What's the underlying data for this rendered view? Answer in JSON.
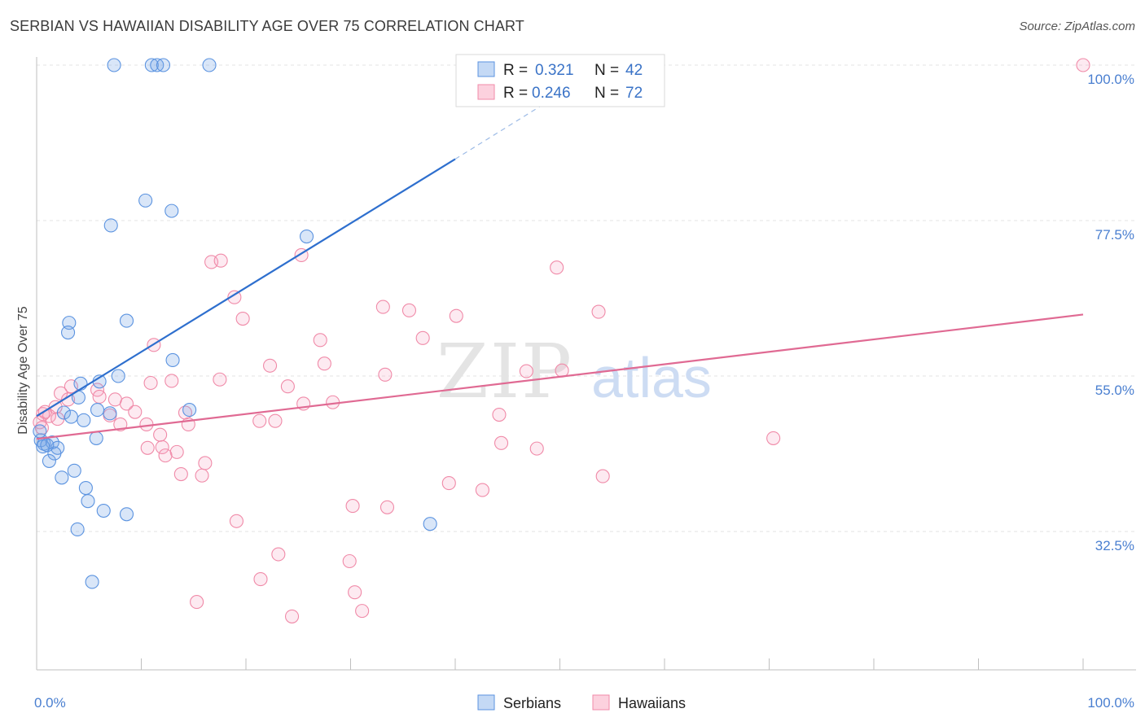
{
  "title": "SERBIAN VS HAWAIIAN DISABILITY AGE OVER 75 CORRELATION CHART",
  "source": "Source: ZipAtlas.com",
  "watermark": {
    "zip": "ZIP",
    "atlas": "atlas"
  },
  "legend": {
    "r_label": "R =",
    "n_label": "N =",
    "rows": [
      {
        "series": "Serbians",
        "r": "0.321",
        "n": "42"
      },
      {
        "series": "Hawaiians",
        "r": "0.246",
        "n": "72"
      }
    ]
  },
  "bottom_legend": [
    "Serbians",
    "Hawaiians"
  ],
  "chart_data": {
    "type": "scatter",
    "title": "SERBIAN VS HAWAIIAN DISABILITY AGE OVER 75 CORRELATION CHART",
    "xlabel": "",
    "ylabel": "Disability Age Over 75",
    "xlim": [
      0,
      100
    ],
    "ylim": [
      10,
      102
    ],
    "x_tick_labels": [
      "0.0%",
      "100.0%"
    ],
    "y_ticks": [
      32.5,
      55.0,
      77.5,
      100.0
    ],
    "y_tick_labels": [
      "32.5%",
      "55.0%",
      "77.5%",
      "100.0%"
    ],
    "grid": true,
    "legend_position": "top-center",
    "colors": {
      "Serbians": "#5b93e0",
      "Hawaiians": "#f08aa8",
      "serbian_line": "#2e6fce",
      "hawaiian_line": "#e06a93"
    },
    "series": [
      {
        "name": "Serbians",
        "r": 0.321,
        "n": 42,
        "trend": {
          "x": [
            0,
            40
          ],
          "y": [
            49.2,
            86.4
          ],
          "dashed_to": [
            55,
            100.5
          ]
        },
        "points": [
          [
            7.4,
            100
          ],
          [
            11,
            100
          ],
          [
            11.5,
            100
          ],
          [
            12.1,
            100
          ],
          [
            16.5,
            100
          ],
          [
            10.4,
            80.4
          ],
          [
            12.9,
            78.9
          ],
          [
            7.1,
            76.8
          ],
          [
            25.8,
            75.2
          ],
          [
            3.1,
            62.7
          ],
          [
            3.0,
            61.3
          ],
          [
            8.6,
            63.0
          ],
          [
            13.0,
            57.3
          ],
          [
            7.8,
            55.0
          ],
          [
            6.0,
            54.2
          ],
          [
            4.2,
            53.9
          ],
          [
            4.0,
            51.9
          ],
          [
            2.6,
            49.7
          ],
          [
            5.8,
            50.1
          ],
          [
            7.0,
            49.6
          ],
          [
            14.6,
            50.1
          ],
          [
            3.3,
            49.1
          ],
          [
            4.5,
            48.6
          ],
          [
            0.4,
            45.7
          ],
          [
            0.7,
            45.2
          ],
          [
            1.5,
            45.4
          ],
          [
            2.0,
            44.6
          ],
          [
            0.6,
            44.8
          ],
          [
            1.7,
            43.8
          ],
          [
            5.7,
            46.0
          ],
          [
            1.2,
            42.7
          ],
          [
            3.6,
            41.3
          ],
          [
            2.4,
            40.3
          ],
          [
            4.7,
            38.8
          ],
          [
            4.9,
            36.9
          ],
          [
            6.4,
            35.5
          ],
          [
            8.6,
            35.0
          ],
          [
            3.9,
            32.8
          ],
          [
            37.6,
            33.6
          ],
          [
            5.3,
            25.2
          ],
          [
            0.3,
            47.0
          ],
          [
            1.0,
            45.0
          ]
        ]
      },
      {
        "name": "Hawaiians",
        "r": 0.246,
        "n": 72,
        "trend": {
          "x": [
            0,
            100
          ],
          "y": [
            45.9,
            63.9
          ]
        },
        "points": [
          [
            100,
            100
          ],
          [
            49.7,
            70.7
          ],
          [
            16.7,
            71.5
          ],
          [
            17.6,
            71.7
          ],
          [
            25.3,
            72.5
          ],
          [
            18.9,
            66.4
          ],
          [
            33.1,
            65.0
          ],
          [
            35.6,
            64.5
          ],
          [
            40.1,
            63.7
          ],
          [
            53.7,
            64.3
          ],
          [
            19.7,
            63.3
          ],
          [
            27.1,
            60.2
          ],
          [
            36.9,
            60.5
          ],
          [
            11.2,
            59.5
          ],
          [
            22.3,
            56.5
          ],
          [
            27.5,
            56.8
          ],
          [
            33.3,
            55.2
          ],
          [
            46.8,
            55.7
          ],
          [
            50.2,
            55.8
          ],
          [
            10.9,
            54.0
          ],
          [
            12.9,
            54.3
          ],
          [
            17.5,
            54.5
          ],
          [
            3.3,
            53.5
          ],
          [
            5.8,
            53.0
          ],
          [
            24.0,
            53.5
          ],
          [
            2.3,
            52.5
          ],
          [
            6.0,
            52.0
          ],
          [
            7.5,
            51.6
          ],
          [
            25.5,
            51.0
          ],
          [
            28.3,
            51.2
          ],
          [
            3.0,
            51.6
          ],
          [
            1.8,
            50.5
          ],
          [
            0.6,
            49.5
          ],
          [
            1.2,
            49.2
          ],
          [
            9.4,
            49.8
          ],
          [
            7.0,
            49.3
          ],
          [
            14.2,
            49.7
          ],
          [
            44.2,
            49.4
          ],
          [
            0.3,
            48.3
          ],
          [
            10.5,
            48.0
          ],
          [
            21.3,
            48.5
          ],
          [
            22.8,
            48.5
          ],
          [
            14.5,
            48.0
          ],
          [
            8.0,
            48.0
          ],
          [
            70.4,
            46.0
          ],
          [
            44.4,
            45.3
          ],
          [
            47.8,
            44.5
          ],
          [
            10.6,
            44.6
          ],
          [
            12.0,
            44.7
          ],
          [
            13.4,
            44.0
          ],
          [
            12.3,
            43.5
          ],
          [
            16.1,
            42.4
          ],
          [
            13.8,
            40.8
          ],
          [
            15.8,
            40.6
          ],
          [
            39.4,
            39.5
          ],
          [
            42.6,
            38.5
          ],
          [
            54.1,
            40.5
          ],
          [
            30.2,
            36.2
          ],
          [
            19.1,
            34.0
          ],
          [
            23.1,
            29.2
          ],
          [
            29.9,
            28.2
          ],
          [
            21.4,
            25.6
          ],
          [
            30.4,
            23.7
          ],
          [
            15.3,
            22.3
          ],
          [
            24.4,
            20.2
          ],
          [
            31.1,
            21.0
          ],
          [
            8.6,
            51.0
          ],
          [
            0.8,
            49.8
          ],
          [
            11.8,
            46.5
          ],
          [
            33.5,
            36.0
          ],
          [
            2.0,
            48.8
          ],
          [
            0.5,
            47.5
          ]
        ]
      }
    ]
  }
}
